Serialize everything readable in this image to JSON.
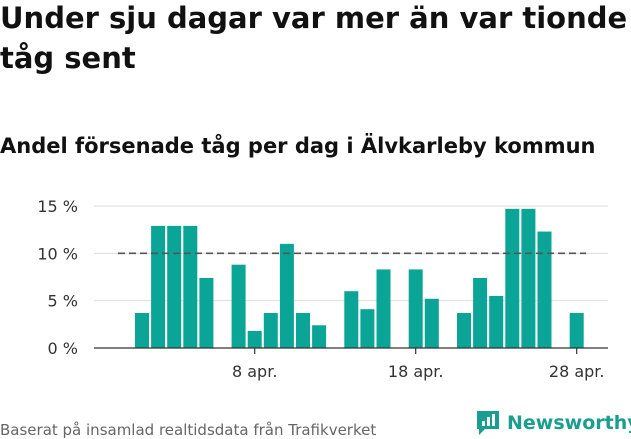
{
  "header": {
    "title": "Under sju dagar var mer än var tionde tåg sent",
    "subtitle": "Andel försenade tåg per dag i Älvkarleby kommun"
  },
  "footer": {
    "source": "Baserat på insamlad realtidsdata från Trafikverket",
    "brand": "Newsworthy"
  },
  "colors": {
    "bar": "#0aa597",
    "grid": "#dddddd",
    "reference": "#555555",
    "brand": "#1a9e8f"
  },
  "chart_data": {
    "type": "bar",
    "x": [
      1,
      2,
      3,
      4,
      5,
      6,
      7,
      8,
      9,
      10,
      11,
      12,
      13,
      14,
      15,
      16,
      17,
      18,
      19,
      20,
      21,
      22,
      23,
      24,
      25,
      26,
      27,
      28,
      29,
      30
    ],
    "values": [
      3.7,
      12.9,
      12.9,
      12.9,
      7.4,
      0,
      8.8,
      1.8,
      3.7,
      11.0,
      3.7,
      2.4,
      0,
      6.0,
      4.1,
      8.3,
      0,
      8.3,
      5.2,
      0,
      3.7,
      7.4,
      5.5,
      14.7,
      14.7,
      12.3,
      0,
      3.7,
      0,
      0
    ],
    "reference_line": 10,
    "ylim": [
      0,
      15
    ],
    "yticks": [
      0,
      5,
      10,
      15
    ],
    "ytick_labels": [
      "0 %",
      "5 %",
      "10 %",
      "15 %"
    ],
    "xticks": [
      8,
      18,
      28
    ],
    "xtick_labels": [
      "8 apr.",
      "18 apr.",
      "28 apr."
    ],
    "grid": true
  }
}
